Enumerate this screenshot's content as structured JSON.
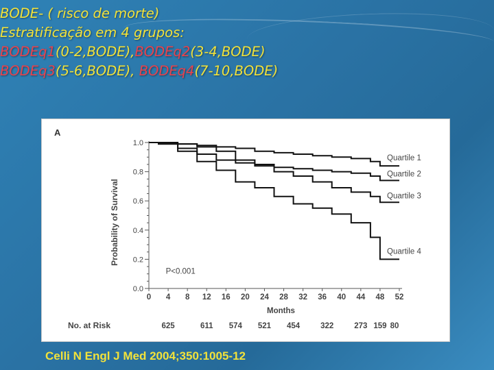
{
  "header": {
    "line1": "BODE- ( risco de morte)",
    "line2": "Estratificação em 4 grupos:",
    "line3": {
      "a": "BODEq1",
      "b": "(0-2,BODE),",
      "c": "BODEq2",
      "d": "(3-4,BODE)"
    },
    "line4": {
      "a": "BODEq3",
      "b": "(5-6,BODE), ",
      "c": "BODEq4",
      "d": "(7-10,BODE)"
    }
  },
  "citation": "Celli N Engl J Med 2004;350:1005-12",
  "colors": {
    "yellow": "#f2e23a",
    "red": "#e8424c",
    "curve": "#111111"
  },
  "chart_data": {
    "type": "line",
    "panel_label": "A",
    "xlabel": "Months",
    "ylabel": "Probability of Survival",
    "xlim": [
      0,
      52
    ],
    "ylim": [
      0,
      1.0
    ],
    "x_ticks": [
      0,
      4,
      8,
      12,
      16,
      20,
      24,
      28,
      32,
      36,
      40,
      44,
      48,
      52
    ],
    "y_ticks": [
      "0.0",
      "0.2",
      "0.4",
      "0.6",
      "0.8",
      "1.0"
    ],
    "annotation": "P<0.001",
    "at_risk_label": "No. at Risk",
    "at_risk": [
      {
        "month": 4,
        "value": "625"
      },
      {
        "month": 12,
        "value": "611"
      },
      {
        "month": 18,
        "value": "574"
      },
      {
        "month": 24,
        "value": "521"
      },
      {
        "month": 30,
        "value": "454"
      },
      {
        "month": 37,
        "value": "322"
      },
      {
        "month": 44,
        "value": "273"
      },
      {
        "month": 48,
        "value": "159"
      },
      {
        "month": 51,
        "value": "80"
      }
    ],
    "series": [
      {
        "name": "Quartile 1",
        "x": [
          0,
          2,
          6,
          10,
          14,
          18,
          22,
          26,
          30,
          34,
          38,
          42,
          46,
          48,
          52
        ],
        "y": [
          1.0,
          1.0,
          0.99,
          0.98,
          0.97,
          0.96,
          0.94,
          0.93,
          0.92,
          0.91,
          0.9,
          0.89,
          0.87,
          0.84,
          0.84
        ]
      },
      {
        "name": "Quartile 2",
        "x": [
          0,
          2,
          6,
          10,
          14,
          18,
          22,
          26,
          30,
          34,
          38,
          42,
          46,
          48,
          52
        ],
        "y": [
          1.0,
          1.0,
          0.99,
          0.97,
          0.94,
          0.88,
          0.85,
          0.83,
          0.82,
          0.81,
          0.8,
          0.79,
          0.77,
          0.74,
          0.74
        ]
      },
      {
        "name": "Quartile 3",
        "x": [
          0,
          2,
          6,
          10,
          14,
          18,
          22,
          26,
          30,
          34,
          38,
          42,
          46,
          48,
          52
        ],
        "y": [
          1.0,
          0.99,
          0.96,
          0.92,
          0.88,
          0.86,
          0.84,
          0.8,
          0.77,
          0.73,
          0.69,
          0.66,
          0.63,
          0.59,
          0.59
        ]
      },
      {
        "name": "Quartile 4",
        "x": [
          0,
          2,
          6,
          10,
          14,
          18,
          22,
          26,
          30,
          34,
          38,
          42,
          46,
          48,
          52
        ],
        "y": [
          1.0,
          0.99,
          0.94,
          0.87,
          0.81,
          0.73,
          0.69,
          0.63,
          0.58,
          0.55,
          0.51,
          0.45,
          0.35,
          0.2,
          0.2
        ]
      }
    ]
  }
}
